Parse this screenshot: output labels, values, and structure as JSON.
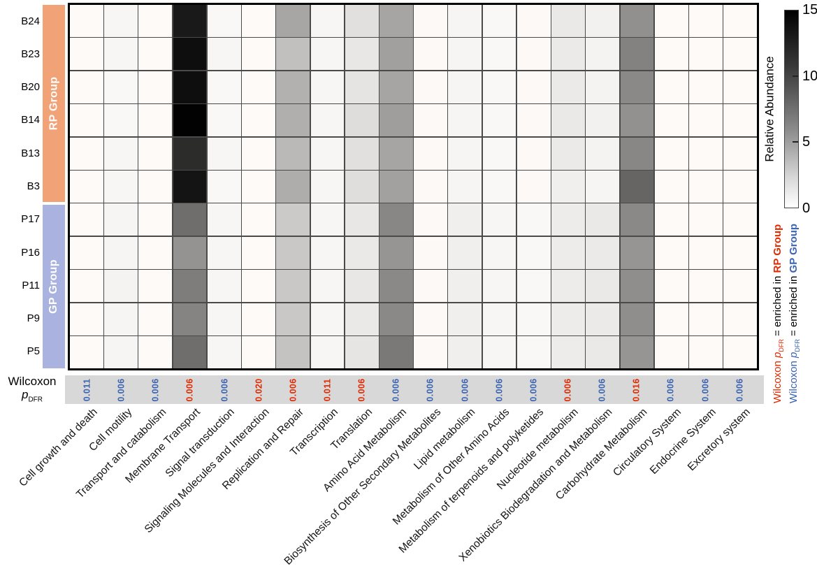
{
  "chart_data": {
    "type": "heatmap",
    "colorbar_label": "Relative Abundance",
    "colorbar_ticks": [
      0,
      5,
      10,
      15
    ],
    "value_range": [
      0,
      15
    ],
    "colormap": "white-to-black",
    "rows": [
      "B24",
      "B23",
      "B20",
      "B14",
      "B13",
      "B3",
      "P17",
      "P16",
      "P11",
      "P9",
      "P5"
    ],
    "row_groups": [
      {
        "name": "RP Group",
        "rows": [
          "B24",
          "B23",
          "B20",
          "B14",
          "B13",
          "B3"
        ]
      },
      {
        "name": "GP Group",
        "rows": [
          "P17",
          "P16",
          "P11",
          "P9",
          "P5"
        ]
      }
    ],
    "columns": [
      "Cell growth and death",
      "Cell motility",
      "Transport and catabolism",
      "Membrane Transport",
      "Signal transduction",
      "Signaling Molecules and Interaction",
      "Replication and Repair",
      "Transcription",
      "Translation",
      "Amino Acid Metabolism",
      "Biosynthesis of Other Secondary Metabolites",
      "Lipid metabolism",
      "Metabolism of Other Amino Acids",
      "Metabolism of terpenoids and polyketides",
      "Nucleotide metabolism",
      "Xenobiotics Biodegradation and Metabolism",
      "Carbohydrate Metabolism",
      "Circulatory System",
      "Endocrine System",
      "Excretory system"
    ],
    "values": [
      [
        0.1,
        0.4,
        0.1,
        13.5,
        0.3,
        0.1,
        5.1,
        0.4,
        1.7,
        5.2,
        0.2,
        0.5,
        0.3,
        0.2,
        1.2,
        0.7,
        6.5,
        0.1,
        0.1,
        0.1
      ],
      [
        0.1,
        0.4,
        0.1,
        14.2,
        0.4,
        0.1,
        3.6,
        0.4,
        1.3,
        5.5,
        0.2,
        0.5,
        0.3,
        0.2,
        1.1,
        0.6,
        7.3,
        0.1,
        0.1,
        0.1
      ],
      [
        0.1,
        0.3,
        0.1,
        14.2,
        0.3,
        0.1,
        4.5,
        0.4,
        1.5,
        5.2,
        0.2,
        0.5,
        0.3,
        0.2,
        1.1,
        0.6,
        6.9,
        0.1,
        0.1,
        0.1
      ],
      [
        0.1,
        0.3,
        0.1,
        14.9,
        0.3,
        0.1,
        4.6,
        0.4,
        1.9,
        5.6,
        0.2,
        0.5,
        0.3,
        0.2,
        1.2,
        0.7,
        6.4,
        0.1,
        0.1,
        0.1
      ],
      [
        0.1,
        0.4,
        0.1,
        12.4,
        0.4,
        0.1,
        4.0,
        0.4,
        1.7,
        5.2,
        0.2,
        0.5,
        0.3,
        0.2,
        1.1,
        0.6,
        7.0,
        0.1,
        0.1,
        0.1
      ],
      [
        0.1,
        0.4,
        0.1,
        13.8,
        0.3,
        0.1,
        4.7,
        0.4,
        1.8,
        5.4,
        0.2,
        0.5,
        0.3,
        0.2,
        0.8,
        0.5,
        9.0,
        0.1,
        0.1,
        0.1
      ],
      [
        0.1,
        0.5,
        0.1,
        8.5,
        0.4,
        0.1,
        3.0,
        0.4,
        1.3,
        7.0,
        0.2,
        0.8,
        0.4,
        0.3,
        1.0,
        1.2,
        6.9,
        0.1,
        0.1,
        0.1
      ],
      [
        0.1,
        0.5,
        0.1,
        6.3,
        0.4,
        0.1,
        3.1,
        0.4,
        1.2,
        6.2,
        0.2,
        0.8,
        0.4,
        0.3,
        1.0,
        1.1,
        6.1,
        0.1,
        0.1,
        0.1
      ],
      [
        0.1,
        0.6,
        0.1,
        7.6,
        0.4,
        0.1,
        3.1,
        0.4,
        1.3,
        6.9,
        0.2,
        0.8,
        0.4,
        0.3,
        1.0,
        1.2,
        6.6,
        0.1,
        0.1,
        0.1
      ],
      [
        0.1,
        0.5,
        0.1,
        7.2,
        0.4,
        0.1,
        3.1,
        0.4,
        1.2,
        6.9,
        0.2,
        0.8,
        0.4,
        0.3,
        1.0,
        1.1,
        6.6,
        0.1,
        0.1,
        0.1
      ],
      [
        0.1,
        0.5,
        0.1,
        8.5,
        0.4,
        0.1,
        3.4,
        0.4,
        1.4,
        7.8,
        0.2,
        0.8,
        0.4,
        0.3,
        1.0,
        1.2,
        6.2,
        0.1,
        0.1,
        0.1
      ]
    ],
    "wilcoxon_p_dfr": [
      "0.011",
      "0.006",
      "0.006",
      "0.006",
      "0.006",
      "0.020",
      "0.006",
      "0.011",
      "0.006",
      "0.006",
      "0.006",
      "0.006",
      "0.006",
      "0.006",
      "0.006",
      "0.006",
      "0.016",
      "0.006",
      "0.006",
      "0.006"
    ],
    "p_enriched_in": [
      "GP",
      "GP",
      "GP",
      "RP",
      "GP",
      "RP",
      "RP",
      "RP",
      "RP",
      "GP",
      "GP",
      "GP",
      "GP",
      "GP",
      "RP",
      "GP",
      "RP",
      "GP",
      "GP",
      "GP"
    ],
    "legend_notes": [
      "Wilcoxon pDFR = enriched in RP Group",
      "Wilcoxon pDFR = enriched in GP Group"
    ]
  },
  "labels": {
    "wilcoxon_line1": "Wilcoxon",
    "p": "p",
    "p_sub": "DFR",
    "wilcoxon_prefix": "Wilcoxon ",
    "equals_enriched": " = enriched in ",
    "rp_group": "RP Group",
    "gp_group": "GP Group"
  },
  "styles": {
    "rp_bar_color": "#F2A277",
    "gp_bar_color": "#AAB3DF",
    "red_accent": "#E22A00",
    "blue_accent": "#3B64B3",
    "strip_bg": "#D8D8D8",
    "grid_line": "#4A4A4A"
  }
}
